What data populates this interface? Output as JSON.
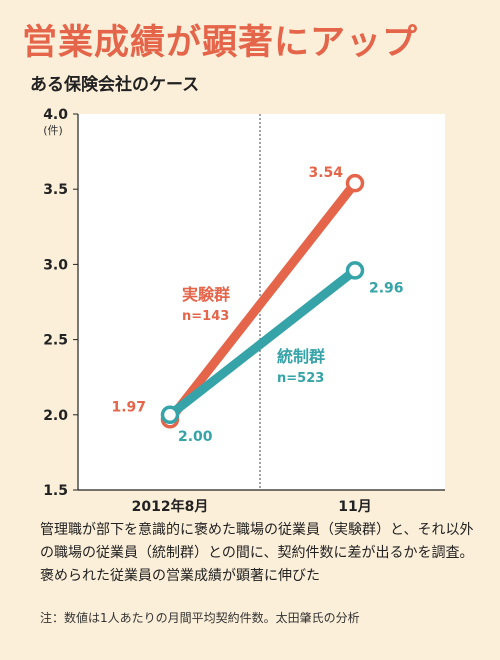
{
  "header": {
    "title": "営業成績が顕著にアップ",
    "subtitle": "ある保険会社のケース"
  },
  "chart_data": {
    "type": "line",
    "categories": [
      "2012年8月",
      "11月"
    ],
    "y_unit": "件",
    "ylim": [
      1.5,
      4.0
    ],
    "yticks": [
      "1.5",
      "2.0",
      "2.5",
      "3.0",
      "3.5",
      "4.0"
    ],
    "grid": false,
    "series": [
      {
        "name": "実験群",
        "sub": "n=143",
        "color": "#e5654a",
        "values": [
          1.97,
          3.54
        ],
        "value_labels": [
          "1.97",
          "3.54"
        ]
      },
      {
        "name": "統制群",
        "sub": "n=523",
        "color": "#35a3a7",
        "values": [
          2.0,
          2.96
        ],
        "value_labels": [
          "2.00",
          "2.96"
        ]
      }
    ]
  },
  "description": "管理職が部下を意識的に褒めた職場の従業員（実験群）と、それ以外の職場の従業員（統制群）との間に、契約件数に差が出るかを調査。褒められた従業員の営業成績が顕著に伸びた",
  "note": "注：数値は1人あたりの月間平均契約件数。太田肇氏の分析"
}
